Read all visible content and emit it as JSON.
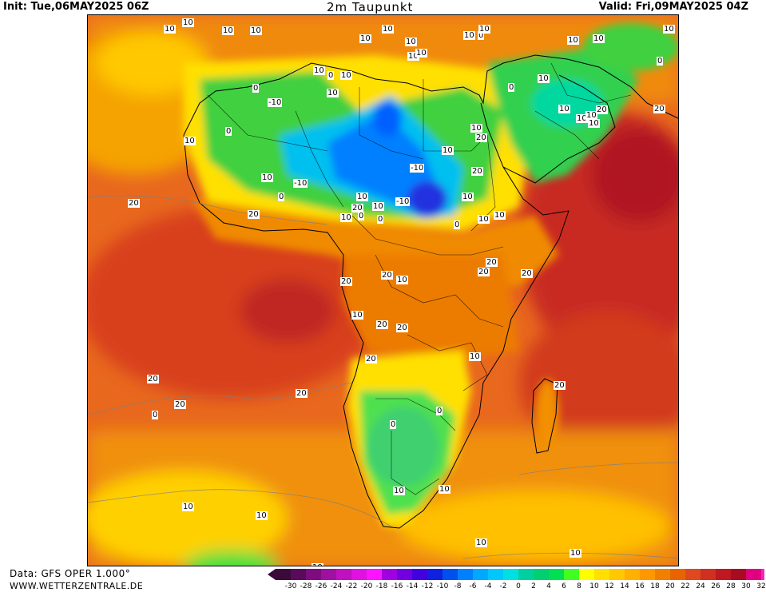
{
  "header": {
    "init": "Init: Tue,06MAY2025 06Z",
    "title": "2m Taupunkt",
    "valid": "Valid: Fri,09MAY2025 04Z"
  },
  "footer": {
    "data_source": "Data: GFS OPER 1.000°",
    "website": "WWW.WETTERZENTRALE.DE"
  },
  "legend": {
    "ticks": [
      "-30",
      "-28",
      "-26",
      "-24",
      "-22",
      "-20",
      "-18",
      "-16",
      "-14",
      "-12",
      "-10",
      "-8",
      "-6",
      "-4",
      "-2",
      "0",
      "2",
      "4",
      "6",
      "8",
      "10",
      "12",
      "14",
      "16",
      "18",
      "20",
      "22",
      "24",
      "26",
      "28",
      "30",
      "32"
    ],
    "colors": [
      "#3b0a3b",
      "#5a0a5a",
      "#7f0c7f",
      "#a010a0",
      "#c010c0",
      "#e012e0",
      "#ff12ff",
      "#a000e0",
      "#7000e0",
      "#4000e0",
      "#1020e0",
      "#0050f0",
      "#0080ff",
      "#00a8ff",
      "#00c8ff",
      "#00e0e0",
      "#00d0a0",
      "#00d070",
      "#00e050",
      "#40ff20",
      "#ffff00",
      "#ffe000",
      "#ffc800",
      "#ffb000",
      "#ff9800",
      "#f08000",
      "#e86400",
      "#e04820",
      "#d03020",
      "#c01820",
      "#a80c20",
      "#e00080",
      "#ff20c0"
    ]
  },
  "contour_labels": [
    {
      "t": "10"
    },
    {
      "t": "10"
    },
    {
      "t": "10"
    },
    {
      "t": "10"
    },
    {
      "t": "10"
    },
    {
      "t": "10"
    },
    {
      "t": "10"
    },
    {
      "t": "10"
    },
    {
      "t": "10"
    },
    {
      "t": "10"
    },
    {
      "t": "0"
    },
    {
      "t": "10"
    },
    {
      "t": "0"
    },
    {
      "t": "10"
    },
    {
      "t": "10"
    },
    {
      "t": "10"
    },
    {
      "t": "0"
    },
    {
      "t": "10"
    },
    {
      "t": "0"
    },
    {
      "t": "10"
    },
    {
      "t": "10"
    },
    {
      "t": "0"
    },
    {
      "t": "-10"
    },
    {
      "t": "10"
    },
    {
      "t": "0"
    },
    {
      "t": "10"
    },
    {
      "t": "0"
    },
    {
      "t": "10"
    },
    {
      "t": "20"
    },
    {
      "t": "10"
    },
    {
      "t": "20"
    },
    {
      "t": "20"
    },
    {
      "t": "10"
    },
    {
      "t": "0"
    },
    {
      "t": "10"
    },
    {
      "t": "10"
    },
    {
      "t": "-10"
    },
    {
      "t": "10"
    },
    {
      "t": "-10"
    },
    {
      "t": "-10"
    },
    {
      "t": "10"
    },
    {
      "t": "20"
    },
    {
      "t": "20"
    },
    {
      "t": "10"
    },
    {
      "t": "0"
    },
    {
      "t": "0"
    },
    {
      "t": "0"
    },
    {
      "t": "10"
    },
    {
      "t": "10"
    },
    {
      "t": "10"
    },
    {
      "t": "10"
    },
    {
      "t": "10"
    },
    {
      "t": "20"
    },
    {
      "t": "20"
    },
    {
      "t": "20"
    },
    {
      "t": "20"
    },
    {
      "t": "20"
    },
    {
      "t": "20"
    },
    {
      "t": "20"
    },
    {
      "t": "10"
    },
    {
      "t": "10"
    },
    {
      "t": "20"
    },
    {
      "t": "20"
    },
    {
      "t": "20"
    },
    {
      "t": "10"
    },
    {
      "t": "0"
    },
    {
      "t": "20"
    },
    {
      "t": "20"
    },
    {
      "t": "20"
    },
    {
      "t": "20"
    },
    {
      "t": "0"
    },
    {
      "t": "0"
    },
    {
      "t": "10"
    },
    {
      "t": "10"
    },
    {
      "t": "10"
    },
    {
      "t": "10"
    },
    {
      "t": "10"
    },
    {
      "t": "10"
    },
    {
      "t": "10"
    }
  ]
}
